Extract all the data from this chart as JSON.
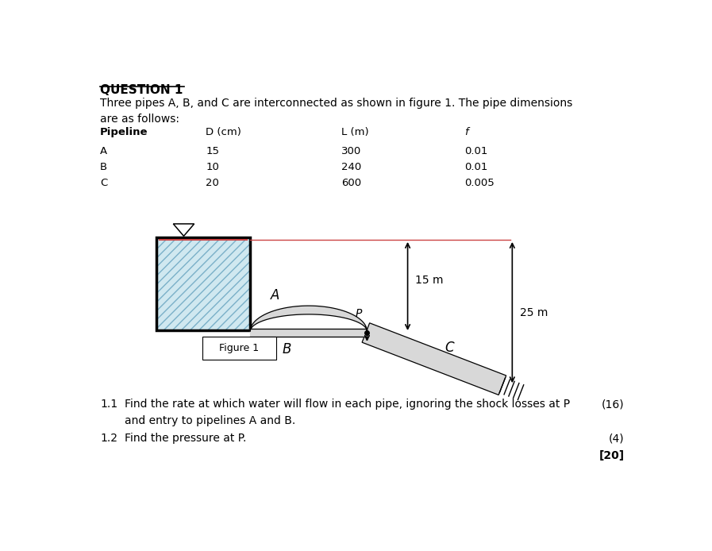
{
  "title": "QUESTION 1",
  "intro_text": "Three pipes A, B, and C are interconnected as shown in figure 1. The pipe dimensions\nare as follows:",
  "table_headers": [
    "Pipeline",
    "D (cm)",
    "L (m)",
    "f"
  ],
  "table_data": [
    [
      "A",
      "15",
      "300",
      "0.01"
    ],
    [
      "B",
      "10",
      "240",
      "0.01"
    ],
    [
      "C",
      "20",
      "600",
      "0.005"
    ]
  ],
  "figure_caption": "Figure 1",
  "q2_mark": "(4)",
  "total_mark": "[20]",
  "bg_color": "#ffffff",
  "tank_fill_color": "#d0e8f0",
  "pipe_color": "#d8d8d8"
}
